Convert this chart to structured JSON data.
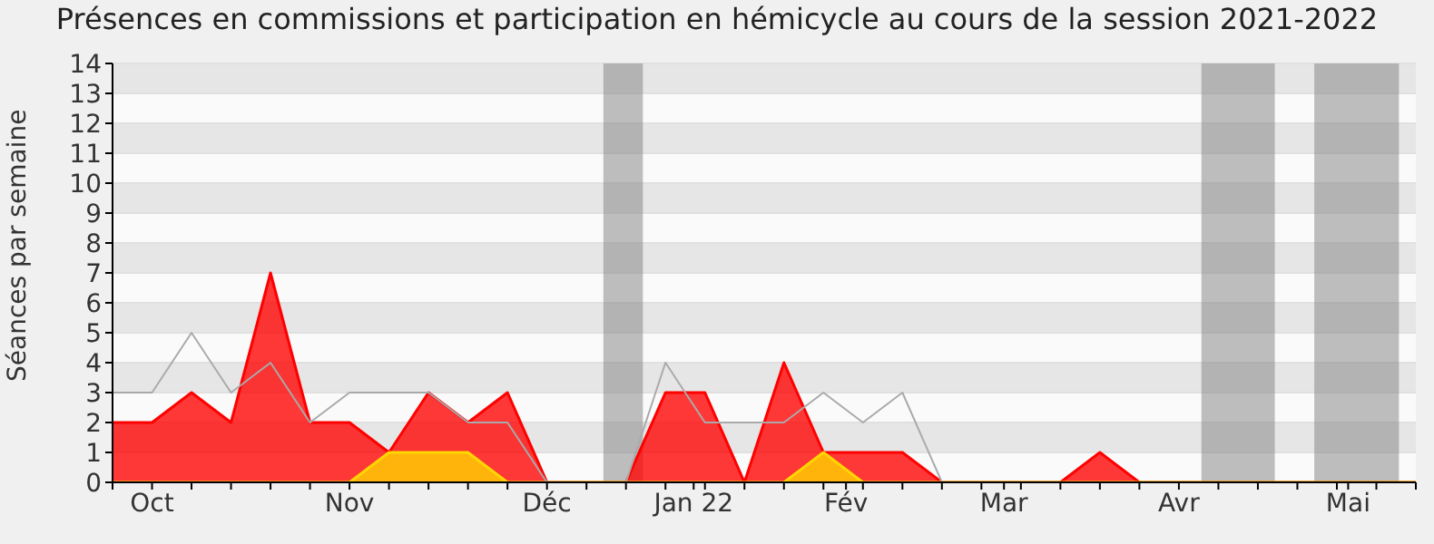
{
  "chart_data": {
    "type": "area",
    "title": "Présences en commissions et participation en hémicycle au cours de la session 2021-2022",
    "ylabel": "Séances par semaine",
    "x": [
      "2021-09-24",
      "2021-10-01",
      "2021-10-08",
      "2021-10-15",
      "2021-10-22",
      "2021-10-29",
      "2021-11-05",
      "2021-11-12",
      "2021-11-19",
      "2021-11-26",
      "2021-12-03",
      "2021-12-10",
      "2021-12-17",
      "2021-12-24",
      "2021-12-31",
      "2022-01-07",
      "2022-01-14",
      "2022-01-21",
      "2022-01-28",
      "2022-02-04",
      "2022-02-11",
      "2022-02-18",
      "2022-02-25",
      "2022-03-04",
      "2022-03-11",
      "2022-03-18",
      "2022-03-25",
      "2022-04-01",
      "2022-04-08",
      "2022-04-15",
      "2022-04-22",
      "2022-04-29",
      "2022-05-06",
      "2022-05-13"
    ],
    "series": [
      {
        "color": "#ff0000",
        "values": [
          2,
          2,
          3,
          2,
          7,
          2,
          2,
          1,
          3,
          2,
          3,
          0,
          0,
          0,
          3,
          3,
          0,
          4,
          1,
          1,
          1,
          0,
          0,
          0,
          0,
          1,
          0,
          0,
          0,
          0,
          0,
          0,
          0,
          0
        ]
      },
      {
        "color": "#ffd700",
        "values": [
          0,
          0,
          0,
          0,
          0,
          0,
          0,
          1,
          1,
          1,
          0,
          0,
          0,
          0,
          0,
          0,
          0,
          0,
          1,
          0,
          0,
          0,
          0,
          0,
          0,
          0,
          0,
          0,
          0,
          0,
          0,
          0,
          0,
          0
        ]
      },
      {
        "type": "line",
        "color": "#aaaaaa",
        "values": [
          3,
          3,
          5,
          3,
          4,
          2,
          3,
          3,
          3,
          2,
          2,
          0,
          0,
          0,
          4,
          2,
          2,
          2,
          3,
          2,
          3,
          0,
          0,
          0,
          0,
          0,
          0,
          0,
          0,
          0,
          0,
          0,
          0,
          0
        ]
      }
    ],
    "xlim": [
      "2021-09-24",
      "2022-05-13"
    ],
    "xticks": [
      {
        "value": "2021-09-24",
        "label": null
      },
      {
        "value": "2021-10-01",
        "label": "Oct"
      },
      {
        "value": "2021-10-08",
        "label": null
      },
      {
        "value": "2021-10-15",
        "label": null
      },
      {
        "value": "2021-10-22",
        "label": null
      },
      {
        "value": "2021-10-29",
        "label": null
      },
      {
        "value": "2021-11-05",
        "label": "Nov"
      },
      {
        "value": "2021-11-12",
        "label": null
      },
      {
        "value": "2021-11-19",
        "label": null
      },
      {
        "value": "2021-11-26",
        "label": null
      },
      {
        "value": "2021-12-03",
        "label": null
      },
      {
        "value": "2021-12-10",
        "label": "Déc"
      },
      {
        "value": "2021-12-17",
        "label": null
      },
      {
        "value": "2021-12-24",
        "label": null
      },
      {
        "value": "2021-12-31",
        "label": null
      },
      {
        "value": "2022-01-05",
        "label": "Jan 22"
      },
      {
        "value": "2022-01-07",
        "label": null
      },
      {
        "value": "2022-01-14",
        "label": null
      },
      {
        "value": "2022-01-21",
        "label": null
      },
      {
        "value": "2022-01-28",
        "label": null
      },
      {
        "value": "2022-02-01",
        "label": "Fév"
      },
      {
        "value": "2022-02-04",
        "label": null
      },
      {
        "value": "2022-02-11",
        "label": null
      },
      {
        "value": "2022-02-18",
        "label": null
      },
      {
        "value": "2022-02-25",
        "label": null
      },
      {
        "value": "2022-03-01",
        "label": "Mar"
      },
      {
        "value": "2022-03-04",
        "label": null
      },
      {
        "value": "2022-03-11",
        "label": null
      },
      {
        "value": "2022-03-18",
        "label": null
      },
      {
        "value": "2022-03-25",
        "label": null
      },
      {
        "value": "2022-04-01",
        "label": "Avr"
      },
      {
        "value": "2022-04-08",
        "label": null
      },
      {
        "value": "2022-04-15",
        "label": null
      },
      {
        "value": "2022-04-22",
        "label": null
      },
      {
        "value": "2022-04-29",
        "label": null
      },
      {
        "value": "2022-05-01",
        "label": "Mai"
      },
      {
        "value": "2022-05-06",
        "label": null
      },
      {
        "value": "2022-05-13",
        "label": null
      }
    ],
    "ylim": [
      0,
      14
    ],
    "yticks": [
      0,
      1,
      2,
      3,
      4,
      5,
      6,
      7,
      8,
      9,
      10,
      11,
      12,
      13,
      14
    ],
    "bands": [
      {
        "axis": "x",
        "from": "2021-12-20",
        "to": "2021-12-27",
        "color": "#808080"
      },
      {
        "axis": "x",
        "from": "2022-04-05",
        "to": "2022-04-18",
        "color": "#808080"
      },
      {
        "axis": "x",
        "from": "2022-04-25",
        "to": "2022-05-10",
        "color": "#808080"
      }
    ],
    "grid": "y",
    "marker": "none",
    "line_style": "solid"
  }
}
